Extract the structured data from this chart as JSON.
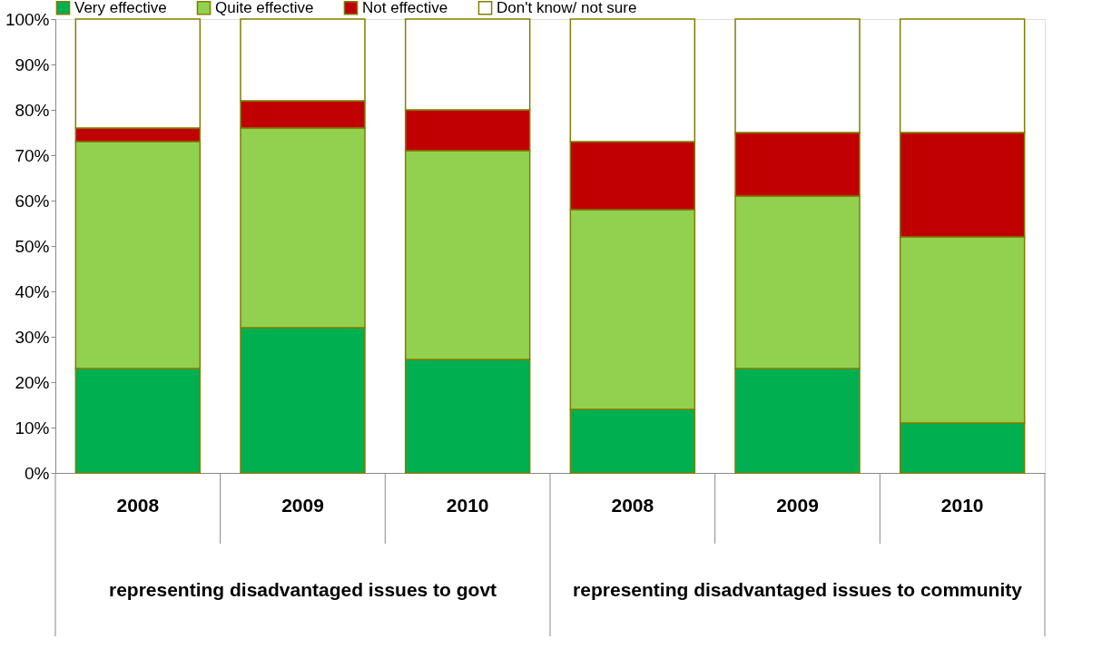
{
  "chart_data": {
    "type": "bar",
    "stacked": true,
    "categories": [
      "2008",
      "2009",
      "2010",
      "2008",
      "2009",
      "2010"
    ],
    "series": [
      {
        "name": "Very effective",
        "color": "#00b050",
        "values": [
          23,
          32,
          25,
          14,
          23,
          11
        ]
      },
      {
        "name": "Quite effective",
        "color": "#92d050",
        "values": [
          50,
          44,
          46,
          44,
          38,
          41
        ]
      },
      {
        "name": "Not effective",
        "color": "#c00000",
        "values": [
          3,
          6,
          9,
          15,
          14,
          23
        ]
      },
      {
        "name": "Don't know/ not sure",
        "color": "#ffffff",
        "values": [
          24,
          18,
          20,
          27,
          25,
          25
        ]
      }
    ],
    "ylim": [
      0,
      100
    ],
    "yticks": [
      {
        "value": 0,
        "label": "0%"
      },
      {
        "value": 10,
        "label": "10%"
      },
      {
        "value": 20,
        "label": "20%"
      },
      {
        "value": 30,
        "label": "30%"
      },
      {
        "value": 40,
        "label": "40%"
      },
      {
        "value": 50,
        "label": "50%"
      },
      {
        "value": 60,
        "label": "60%"
      },
      {
        "value": 70,
        "label": "70%"
      },
      {
        "value": 80,
        "label": "80%"
      },
      {
        "value": 90,
        "label": "90%"
      },
      {
        "value": 100,
        "label": "100%"
      }
    ],
    "annotations": [
      "representing disadvantaged issues to govt",
      "representing disadvantaged issues to community"
    ],
    "grid": false,
    "legend": "top"
  }
}
